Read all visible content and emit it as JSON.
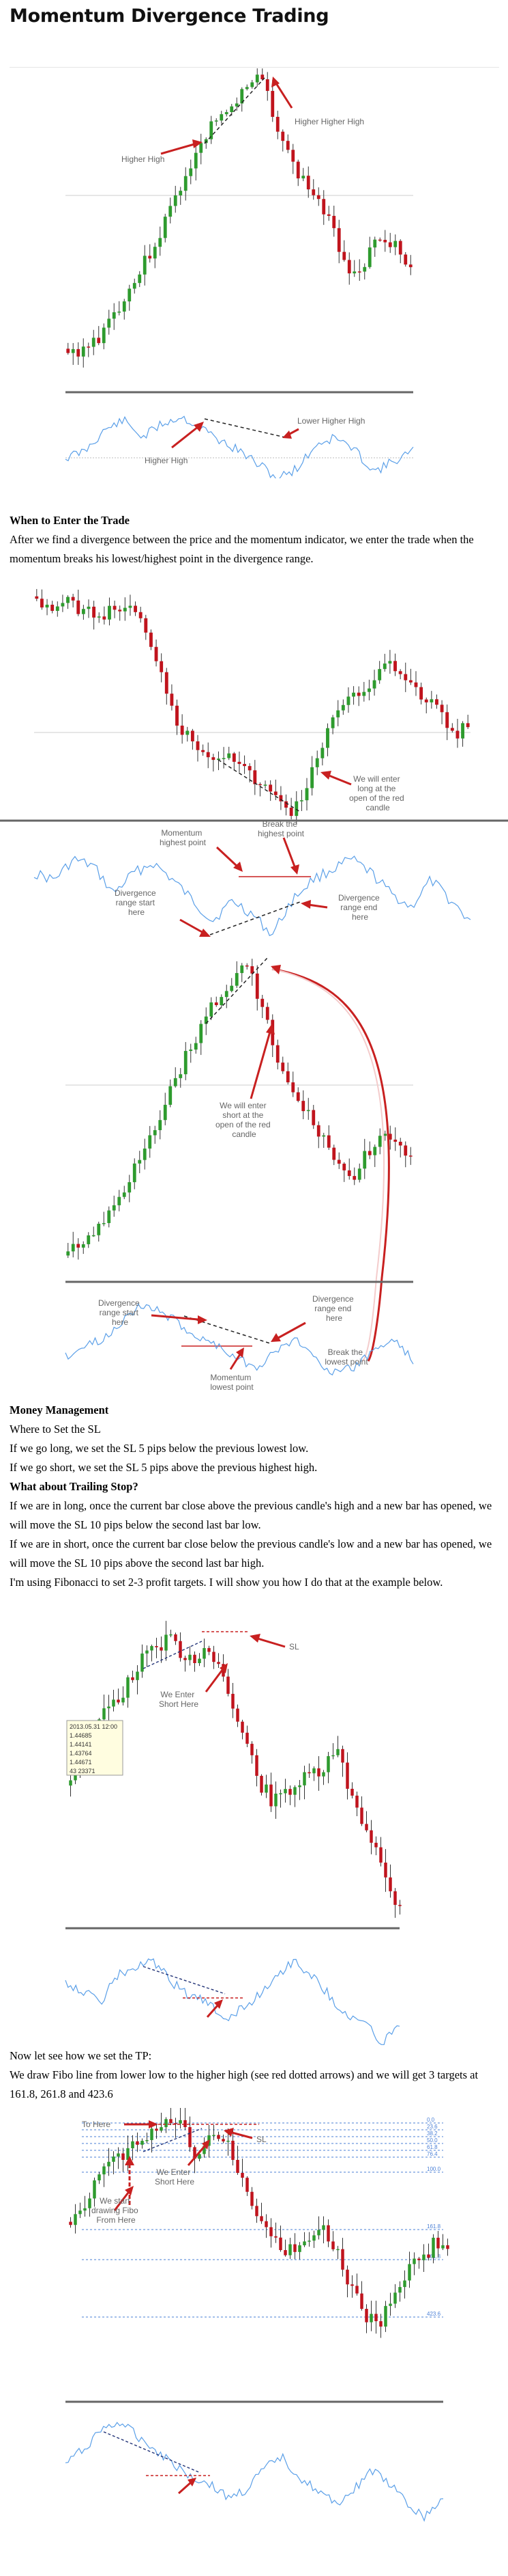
{
  "page": {
    "title": "Momentum Divergence Trading"
  },
  "colors": {
    "bull_candle": "#2e9b2e",
    "bear_candle": "#c0141d",
    "momentum_line": "#5a9fe8",
    "arrow": "#c82020",
    "trendline": "#222222",
    "divider": "#666666"
  },
  "figure1": {
    "labels": {
      "higher_high": "Higher High",
      "higher_higher_high": "Higher Higher High",
      "momentum_higher_high": "Higher High",
      "lower_higher_high": "Lower Higher High"
    }
  },
  "section_enter": {
    "heading": "When to Enter the Trade",
    "paragraph": "After we find a divergence between the price and the momentum indicator, we enter the trade when the momentum breaks his lowest/highest point in the divergence range."
  },
  "figure2": {
    "labels": {
      "enter_long_line1": "We will enter",
      "enter_long_line2": "long at the",
      "enter_long_line3": "open of the red",
      "enter_long_line4": "candle",
      "momentum_highest_line1": "Momentum",
      "momentum_highest_line2": "highest point",
      "break_highest_line1": "Break the",
      "break_highest_line2": "highest point",
      "div_start_line1": "Divergence",
      "div_start_line2": "range start",
      "div_start_line3": "here",
      "div_end_line1": "Divergence",
      "div_end_line2": "range end",
      "div_end_line3": "here"
    }
  },
  "figure3": {
    "labels": {
      "enter_short_line1": "We will enter",
      "enter_short_line2": "short at the",
      "enter_short_line3": "open of the red",
      "enter_short_line4": "candle",
      "div_start_line1": "Divergence",
      "div_start_line2": "range start",
      "div_start_line3": "here",
      "div_end_line1": "Divergence",
      "div_end_line2": "range end",
      "div_end_line3": "here",
      "break_lowest_line1": "Break the",
      "break_lowest_line2": "lowest point",
      "momentum_lowest_line1": "Momentum",
      "momentum_lowest_line2": "lowest point"
    }
  },
  "section_money": {
    "heading": "Money Management",
    "line1": "Where to Set the SL",
    "line2": "If we go long, we set the SL 5 pips below the previous lowest low.",
    "line3": "If we go short, we set the SL 5 pips above the previous highest high.",
    "heading2": "What about Trailing Stop?",
    "line4": "If we are in long, once the current bar close above the previous candle's high and a new bar has opened, we will move the SL 10 pips below the second last bar low.",
    "line5": "If we are in short, once the current bar close below the previous candle's low and a new bar has opened, we will move the SL 10 pips above the second last bar high.",
    "line6": "I'm using Fibonacci to set 2-3 profit targets. I will show you how I do that at the example below."
  },
  "figure4": {
    "labels": {
      "sl": "SL",
      "enter_short_line1": "We Enter",
      "enter_short_line2": "Short Here"
    },
    "tooltip": {
      "line1": "2013.05.31 12:00",
      "line2": "1.44685",
      "line3": "1.44141",
      "line4": "1.43764",
      "line5": "1.44671",
      "line6": "43 23371"
    }
  },
  "section_tp": {
    "line1": "Now let see how we set the TP:",
    "line2": "We draw Fibo line from lower low to the higher high (see red dotted arrows) and we will get 3 targets at 161.8, 261.8 and 423.6"
  },
  "figure5": {
    "labels": {
      "to_here": "To Here",
      "sl": "SL",
      "enter_short_line1": "We Enter",
      "enter_short_line2": "Short Here",
      "start_fibo_line1": "We start",
      "start_fibo_line2": "drawing Fibo",
      "start_fibo_line3": "From Here"
    },
    "fibo_levels": [
      "0.0",
      "23.6",
      "38.2",
      "50.0",
      "61.8",
      "76.4",
      "100.0",
      "161.8",
      "261.8",
      "423.6"
    ]
  }
}
